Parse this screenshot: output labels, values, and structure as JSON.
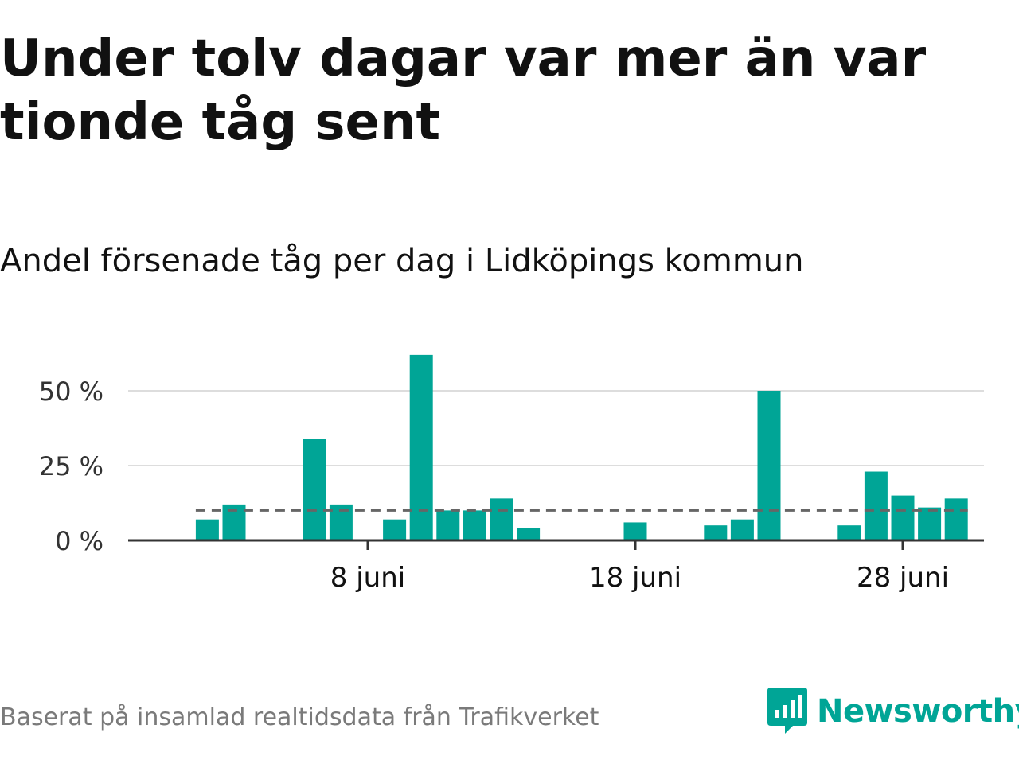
{
  "title": "Under tolv dagar var mer än var tionde tåg sent",
  "subtitle": "Andel försenade tåg per dag i Lidköpings kommun",
  "source": "Baserat på insamlad realtidsdata från Trafikverket",
  "brand": "Newsworthy",
  "colors": {
    "bar": "#00a596",
    "axis": "#333333",
    "grid": "#dddddd",
    "reference": "#666666",
    "brand": "#00a596"
  },
  "chart_data": {
    "type": "bar",
    "title": "Andel försenade tåg per dag i Lidköpings kommun",
    "xlabel": "",
    "ylabel": "",
    "x_unit": "day of June",
    "categories": [
      1,
      2,
      3,
      4,
      5,
      6,
      7,
      8,
      9,
      10,
      11,
      12,
      13,
      14,
      15,
      16,
      17,
      18,
      19,
      20,
      21,
      22,
      23,
      24,
      25,
      26,
      27,
      28,
      29,
      30
    ],
    "values": [
      null,
      7,
      12,
      null,
      null,
      34,
      12,
      null,
      7,
      62,
      10,
      10,
      14,
      4,
      null,
      null,
      null,
      6,
      null,
      null,
      5,
      7,
      50,
      null,
      null,
      5,
      23,
      15,
      11,
      14
    ],
    "reference_line": {
      "value": 10,
      "style": "dashed"
    },
    "ylim": [
      0,
      62
    ],
    "yticks": [
      {
        "value": 0,
        "label": "0 %"
      },
      {
        "value": 25,
        "label": "25 %"
      },
      {
        "value": 50,
        "label": "50 %"
      }
    ],
    "xticks": [
      {
        "value": 8,
        "label": "8 juni"
      },
      {
        "value": 18,
        "label": "18 juni"
      },
      {
        "value": 28,
        "label": "28 juni"
      }
    ],
    "grid": true
  }
}
